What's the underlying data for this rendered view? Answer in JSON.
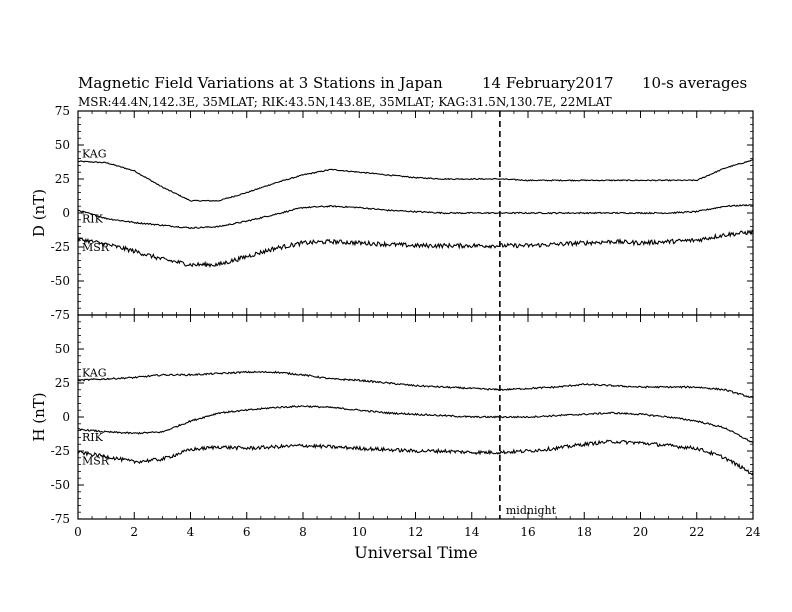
{
  "title": {
    "main": "Magnetic Field Variations at 3 Stations in Japan",
    "date": "14 February2017",
    "averaging": "10-s averages",
    "stations_line": "MSR:44.4N,142.3E, 35MLAT;  RIK:43.5N,143.8E, 35MLAT;  KAG:31.5N,130.7E, 22MLAT"
  },
  "chart_data": [
    {
      "type": "line",
      "panel": "D",
      "ylabel": "D (nT)",
      "xlabel": "Universal Time",
      "xlim": [
        0,
        24
      ],
      "ylim": [
        -75,
        75
      ],
      "x_ticks": [
        0,
        2,
        4,
        6,
        8,
        10,
        12,
        14,
        16,
        18,
        20,
        22,
        24
      ],
      "y_ticks": [
        -75,
        -50,
        -25,
        0,
        25,
        50,
        75
      ],
      "x": [
        0,
        1,
        2,
        3,
        4,
        5,
        6,
        7,
        8,
        9,
        10,
        11,
        12,
        13,
        14,
        15,
        16,
        17,
        18,
        19,
        20,
        21,
        22,
        23,
        24
      ],
      "series": [
        {
          "name": "KAG",
          "values": [
            38,
            37,
            31,
            19,
            9,
            9,
            15,
            22,
            28,
            32,
            30,
            28,
            26,
            25,
            25,
            25,
            24,
            24,
            24,
            24,
            24,
            24,
            24,
            33,
            39
          ]
        },
        {
          "name": "RIK",
          "values": [
            2,
            -4,
            -7,
            -9,
            -11,
            -10,
            -6,
            -1,
            4,
            5,
            4,
            2,
            1,
            0,
            0,
            0,
            0,
            0,
            0,
            0,
            0,
            0,
            1,
            5,
            6
          ]
        },
        {
          "name": "MSR",
          "values": [
            -19,
            -23,
            -28,
            -34,
            -38,
            -38,
            -32,
            -26,
            -22,
            -21,
            -22,
            -23,
            -24,
            -24,
            -24,
            -24,
            -24,
            -23,
            -22,
            -21,
            -22,
            -21,
            -20,
            -16,
            -14
          ]
        }
      ],
      "series_noise": [
        0.4,
        0.5,
        1.6
      ],
      "midnight_marker": {
        "x": 15
      }
    },
    {
      "type": "line",
      "panel": "H",
      "ylabel": "H (nT)",
      "xlabel": "Universal Time",
      "xlim": [
        0,
        24
      ],
      "ylim": [
        -75,
        75
      ],
      "x_ticks": [
        0,
        2,
        4,
        6,
        8,
        10,
        12,
        14,
        16,
        18,
        20,
        22,
        24
      ],
      "y_ticks": [
        -75,
        -50,
        -25,
        0,
        25,
        50,
        75
      ],
      "x": [
        0,
        1,
        2,
        3,
        4,
        5,
        6,
        7,
        8,
        9,
        10,
        11,
        12,
        13,
        14,
        15,
        16,
        17,
        18,
        19,
        20,
        21,
        22,
        23,
        24
      ],
      "series": [
        {
          "name": "KAG",
          "values": [
            27,
            28,
            29,
            31,
            31,
            32,
            33,
            33,
            31,
            28,
            27,
            25,
            23,
            22,
            21,
            20,
            21,
            22,
            24,
            23,
            22,
            22,
            22,
            20,
            14
          ]
        },
        {
          "name": "RIK",
          "values": [
            -9,
            -11,
            -12,
            -11,
            -3,
            3,
            5,
            7,
            8,
            7,
            5,
            3,
            2,
            1,
            0,
            0,
            0,
            1,
            2,
            3,
            2,
            0,
            -3,
            -8,
            -19
          ]
        },
        {
          "name": "MSR",
          "values": [
            -26,
            -29,
            -33,
            -31,
            -24,
            -22,
            -23,
            -22,
            -21,
            -22,
            -23,
            -24,
            -25,
            -25,
            -26,
            -26,
            -25,
            -23,
            -20,
            -18,
            -19,
            -21,
            -23,
            -30,
            -42
          ]
        }
      ],
      "series_noise": [
        0.6,
        0.6,
        1.3
      ],
      "midnight_marker": {
        "x": 15,
        "label": "midnight"
      }
    }
  ],
  "colors": {
    "line": "#000000",
    "background": "#ffffff"
  }
}
